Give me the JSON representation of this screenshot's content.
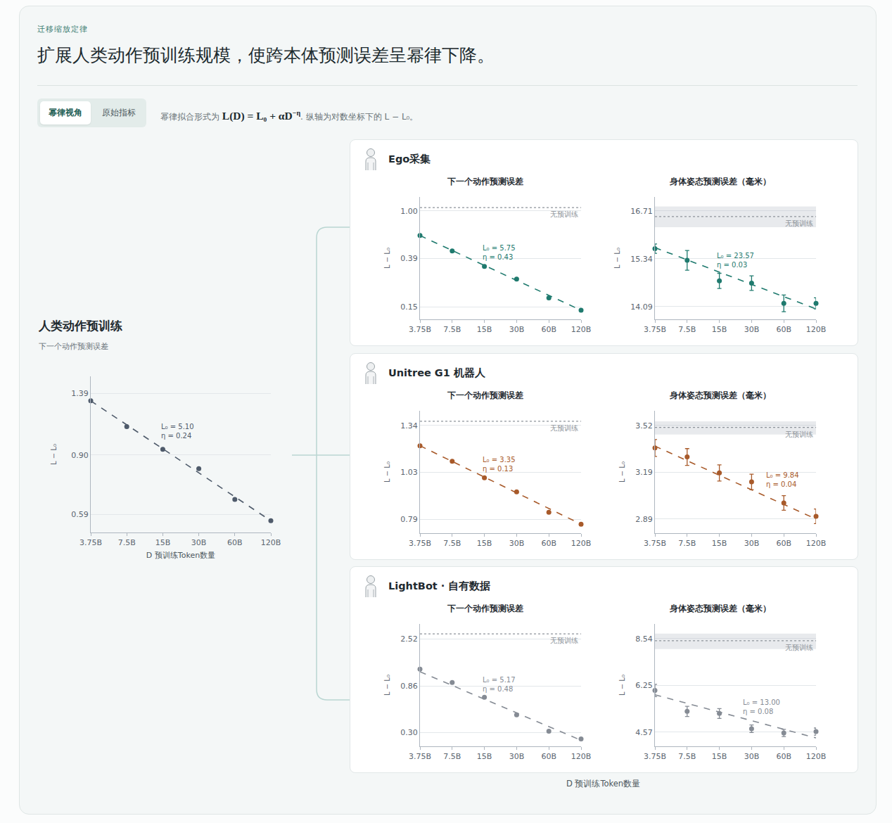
{
  "header": {
    "kicker": "迁移缩放定律",
    "title": "扩展人类动作预训练规模，使跨本体预测误差呈幂律下降。",
    "tabs": [
      {
        "label": "幂律视角",
        "active": true
      },
      {
        "label": "原始指标",
        "active": false
      }
    ],
    "description": {
      "before": "幂律拟合形式为 ",
      "formula": "L(D) = L₀ + αD",
      "exponent": "−η",
      "after": ". 纵轴为对数坐标下的 L − L₀。"
    }
  },
  "right_x_title": "D 预训练Token数量",
  "chart_data": [
    {
      "type": "scatter",
      "panel": "人类动作预训练",
      "title": "下一个动作预测误差",
      "x_title": "D 预训练Token数量",
      "y_title": "L − L₀",
      "log": true,
      "grid": "y",
      "x": [
        3.75,
        7.5,
        15,
        30,
        60,
        120
      ],
      "xlim": [
        3.75,
        120
      ],
      "xticks": [
        {
          "value": 3.75,
          "label": "3.75B"
        },
        {
          "value": 7.5,
          "label": "7.5B"
        },
        {
          "value": 15,
          "label": "15B"
        },
        {
          "value": 30,
          "label": "30B"
        },
        {
          "value": 60,
          "label": "60B"
        },
        {
          "value": 120,
          "label": "120B"
        }
      ],
      "ylim": [
        0.52,
        1.57
      ],
      "yticks": [
        1.39,
        {
          "value": 0.9,
          "label": "0.90"
        },
        0.59
      ],
      "series": [
        {
          "color": "#4f5b6b",
          "marker": "circle",
          "values": [
            1.32,
            1.1,
            0.937,
            0.817,
            0.657,
            0.565
          ]
        },
        {
          "type": "line",
          "line_style": "dashed",
          "color": "#4f5b6b",
          "x": [
            3.75,
            120
          ],
          "values": [
            1.32,
            0.565
          ]
        }
      ],
      "annotation": {
        "text": [
          "L₀ = 5.10",
          "η = 0.24"
        ],
        "x": 14.1,
        "y": 1.14
      }
    },
    {
      "type": "scatter",
      "panel": "Ego采集",
      "title": "下一个动作预测误差",
      "y_title": "L − L₀",
      "log": true,
      "grid": "y",
      "x": [
        3.75,
        7.5,
        15,
        30,
        60,
        120
      ],
      "xlim": [
        3.75,
        120
      ],
      "xticks": [
        {
          "value": 3.75,
          "label": "3.75B"
        },
        {
          "value": 7.5,
          "label": "7.5B"
        },
        {
          "value": 15,
          "label": "15B"
        },
        {
          "value": 30,
          "label": "30B"
        },
        {
          "value": 60,
          "label": "60B"
        },
        {
          "value": 120,
          "label": "120B"
        }
      ],
      "ylim": [
        0.117,
        1.32
      ],
      "yticks": [
        {
          "value": 1,
          "label": "1.00"
        },
        0.39,
        0.15
      ],
      "series": [
        {
          "color": "#1f7a6e",
          "marker": "circle",
          "values": [
            0.615,
            0.454,
            0.334,
            0.26,
            0.179,
            0.14
          ]
        },
        {
          "type": "line",
          "line_style": "dashed",
          "color": "#1f7a6e",
          "x": [
            3.75,
            120
          ],
          "values": [
            0.615,
            0.14
          ]
        }
      ],
      "reference": {
        "value": 1.07,
        "label": "无预训练"
      },
      "annotation": {
        "text": [
          "L₀ = 5.75",
          "η = 0.43"
        ],
        "x": 14,
        "y": 0.536
      }
    },
    {
      "type": "scatter",
      "panel": "Ego采集",
      "title": "身体姿态预测误差（毫米）",
      "y_title": "L − L₀",
      "log": true,
      "grid": "y",
      "x": [
        3.75,
        7.5,
        15,
        30,
        60,
        120
      ],
      "xlim": [
        3.75,
        120
      ],
      "xticks": [
        {
          "value": 3.75,
          "label": "3.75B"
        },
        {
          "value": 7.5,
          "label": "7.5B"
        },
        {
          "value": 15,
          "label": "15B"
        },
        {
          "value": 30,
          "label": "30B"
        },
        {
          "value": 60,
          "label": "60B"
        },
        {
          "value": 120,
          "label": "120B"
        }
      ],
      "ylim": [
        13.77,
        17.13
      ],
      "yticks": [
        16.71,
        15.34,
        14.09
      ],
      "series": [
        {
          "color": "#1f7a6e",
          "marker": "circle",
          "values": [
            15.62,
            15.3,
            14.75,
            14.69,
            14.17,
            14.17
          ],
          "error": [
            0.13,
            0.27,
            0.2,
            0.19,
            0.21,
            0.14
          ]
        },
        {
          "type": "line",
          "line_style": "dashed",
          "color": "#1f7a6e",
          "x": [
            3.75,
            120
          ],
          "values": [
            15.65,
            14.03
          ]
        }
      ],
      "reference": {
        "value": 16.54,
        "low": 16.23,
        "high": 16.84,
        "label": "无预训练"
      },
      "annotation": {
        "text": [
          "L₀ = 23.57",
          "η = 0.03"
        ],
        "x": 13.8,
        "y": 15.58
      }
    },
    {
      "type": "scatter",
      "panel": "Unitree G1 机器人",
      "title": "下一个动作预测误差",
      "y_title": "L − L₀",
      "log": true,
      "grid": "y",
      "x": [
        3.75,
        7.5,
        15,
        30,
        60,
        120
      ],
      "xlim": [
        3.75,
        120
      ],
      "xticks": [
        {
          "value": 3.75,
          "label": "3.75B"
        },
        {
          "value": 7.5,
          "label": "7.5B"
        },
        {
          "value": 15,
          "label": "15B"
        },
        {
          "value": 30,
          "label": "30B"
        },
        {
          "value": 60,
          "label": "60B"
        },
        {
          "value": 120,
          "label": "120B"
        }
      ],
      "ylim": [
        0.73,
        1.455
      ],
      "yticks": [
        1.34,
        1.03,
        0.79
      ],
      "series": [
        {
          "color": "#a85a2a",
          "marker": "circle",
          "values": [
            1.195,
            1.095,
            0.997,
            0.921,
            0.821,
            0.768
          ]
        },
        {
          "type": "line",
          "line_style": "dashed",
          "color": "#a85a2a",
          "x": [
            3.75,
            120
          ],
          "values": [
            1.195,
            0.768
          ]
        }
      ],
      "reference": {
        "value": 1.372,
        "label": "无预训练"
      },
      "annotation": {
        "text": [
          "L₀ = 3.35",
          "η = 0.13"
        ],
        "x": 14,
        "y": 1.138
      }
    },
    {
      "type": "scatter",
      "panel": "Unitree G1 机器人",
      "title": "身体姿态预测误差（毫米）",
      "y_title": "L − L₀",
      "log": true,
      "grid": "y",
      "x": [
        3.75,
        7.5,
        15,
        30,
        60,
        120
      ],
      "xlim": [
        3.75,
        120
      ],
      "xticks": [
        {
          "value": 3.75,
          "label": "3.75B"
        },
        {
          "value": 7.5,
          "label": "7.5B"
        },
        {
          "value": 15,
          "label": "15B"
        },
        {
          "value": 30,
          "label": "30B"
        },
        {
          "value": 60,
          "label": "60B"
        },
        {
          "value": 120,
          "label": "120B"
        }
      ],
      "ylim": [
        2.805,
        3.63
      ],
      "yticks": [
        3.52,
        3.19,
        2.89
      ],
      "series": [
        {
          "color": "#a85a2a",
          "marker": "circle",
          "values": [
            3.357,
            3.294,
            3.185,
            3.125,
            2.99,
            2.907
          ],
          "error": [
            0.06,
            0.058,
            0.054,
            0.051,
            0.046,
            0.045
          ]
        },
        {
          "type": "line",
          "line_style": "dashed",
          "color": "#a85a2a",
          "x": [
            3.75,
            120
          ],
          "values": [
            3.37,
            2.89
          ]
        }
      ],
      "reference": {
        "value": 3.505,
        "low": 3.453,
        "high": 3.55,
        "label": "无预训练"
      },
      "annotation": {
        "text": [
          "L₀ = 9.84",
          "η = 0.04"
        ],
        "x": 39.5,
        "y": 3.203
      }
    },
    {
      "type": "scatter",
      "panel": "LightBot · 自有数据",
      "title": "下一个动作预测误差",
      "y_title": "L − L₀",
      "log": true,
      "grid": "y",
      "x": [
        3.75,
        7.5,
        15,
        30,
        60,
        120
      ],
      "xlim": [
        3.75,
        120
      ],
      "xticks": [
        {
          "value": 3.75,
          "label": "3.75B"
        },
        {
          "value": 7.5,
          "label": "7.5B"
        },
        {
          "value": 15,
          "label": "15B"
        },
        {
          "value": 30,
          "label": "30B"
        },
        {
          "value": 60,
          "label": "60B"
        },
        {
          "value": 120,
          "label": "120B"
        }
      ],
      "ylim": [
        0.218,
        3.53
      ],
      "yticks": [
        2.52,
        0.86,
        {
          "value": 0.3,
          "label": "0.30"
        }
      ],
      "series": [
        {
          "color": "#858b94",
          "marker": "circle",
          "values": [
            1.264,
            0.932,
            0.665,
            0.446,
            0.308,
            0.258
          ]
        },
        {
          "type": "line",
          "line_style": "dashed",
          "color": "#858b94",
          "x": [
            3.75,
            120
          ],
          "values": [
            1.19,
            0.25
          ]
        }
      ],
      "reference": {
        "value": 2.82,
        "label": "无预训练"
      },
      "annotation": {
        "text": [
          "L₀ = 5.17",
          "η = 0.48"
        ],
        "x": 14,
        "y": 1.11
      }
    },
    {
      "type": "scatter",
      "panel": "LightBot · 自有数据",
      "title": "身体姿态预测误差（毫米）",
      "y_title": "L − L₀",
      "log": true,
      "grid": "y",
      "x": [
        3.75,
        7.5,
        15,
        30,
        60,
        120
      ],
      "xlim": [
        3.75,
        120
      ],
      "xticks": [
        {
          "value": 3.75,
          "label": "3.75B"
        },
        {
          "value": 7.5,
          "label": "7.5B"
        },
        {
          "value": 15,
          "label": "15B"
        },
        {
          "value": 30,
          "label": "30B"
        },
        {
          "value": 60,
          "label": "60B"
        },
        {
          "value": 120,
          "label": "120B"
        }
      ],
      "ylim": [
        4.16,
        9.42
      ],
      "yticks": [
        8.54,
        6.25,
        4.57
      ],
      "series": [
        {
          "color": "#858b94",
          "marker": "circle",
          "values": [
            6.045,
            5.255,
            5.18,
            4.68,
            4.55,
            4.59
          ],
          "error": [
            0.25,
            0.18,
            0.17,
            0.12,
            0.11,
            0.11
          ]
        },
        {
          "type": "line",
          "line_style": "dashed",
          "color": "#858b94",
          "x": [
            3.75,
            120
          ],
          "values": [
            5.87,
            4.4
          ]
        }
      ],
      "reference": {
        "value": 8.42,
        "low": 7.96,
        "high": 8.83,
        "label": "无预训练"
      },
      "annotation": {
        "text": [
          "L₀ = 13.00",
          "η = 0.08"
        ],
        "x": 24.3,
        "y": 5.77
      }
    }
  ]
}
